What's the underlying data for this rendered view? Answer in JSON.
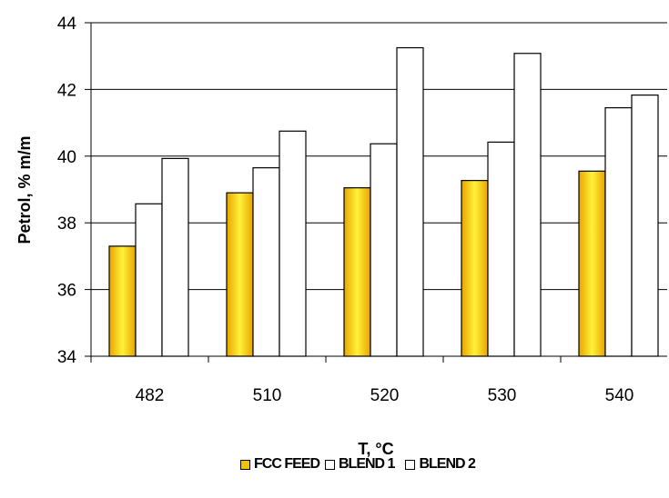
{
  "chart_data": {
    "type": "bar",
    "title": "",
    "xlabel": "T, °C",
    "ylabel": "Petrol, % m/m",
    "categories": [
      "482",
      "510",
      "520",
      "530",
      "540"
    ],
    "ylim": [
      34,
      44
    ],
    "yticks": [
      "34",
      "36",
      "38",
      "40",
      "42",
      "44"
    ],
    "grid": true,
    "legend_position": "bottom",
    "series": [
      {
        "name": "FCC FEED",
        "values": [
          37.3,
          38.9,
          39.05,
          39.27,
          39.55
        ],
        "color": "#f5c000"
      },
      {
        "name": "BLEND 1",
        "values": [
          38.57,
          39.65,
          40.37,
          40.42,
          41.45
        ],
        "color": "#ffffff"
      },
      {
        "name": "BLEND 2",
        "values": [
          39.93,
          40.75,
          43.25,
          43.08,
          41.83
        ],
        "color": "#ffffff"
      }
    ]
  }
}
